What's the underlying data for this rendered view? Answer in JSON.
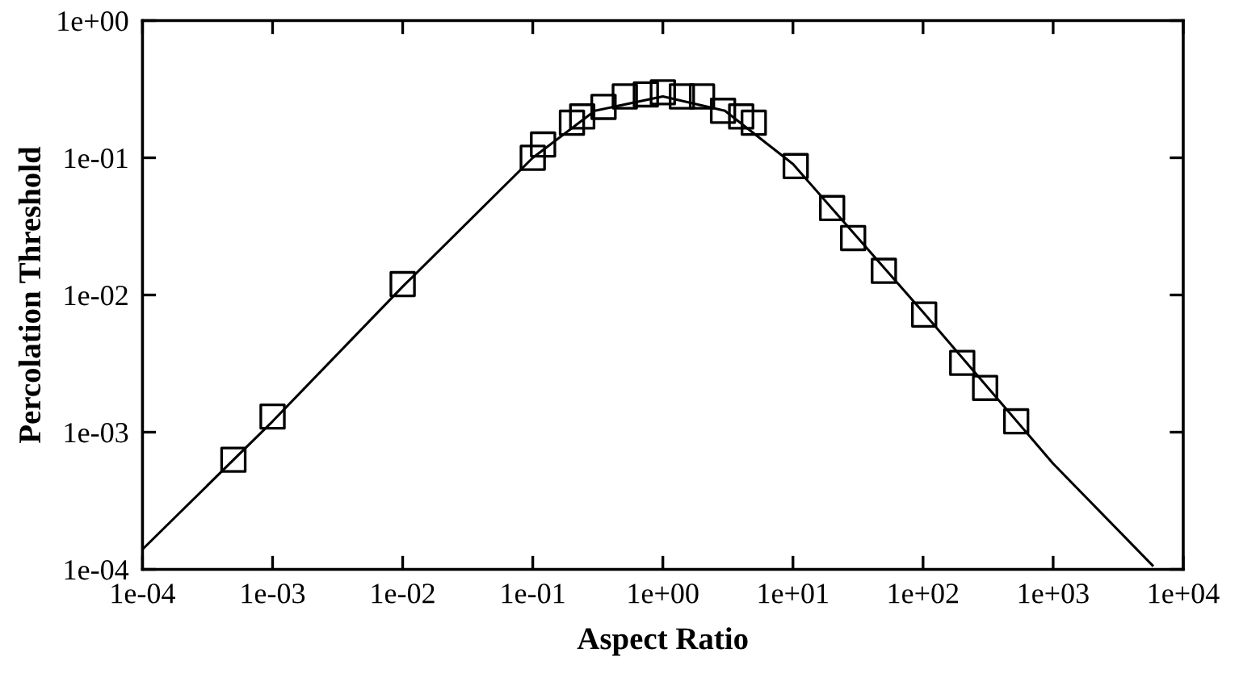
{
  "chart_data": {
    "type": "scatter",
    "xlabel": "Aspect Ratio",
    "ylabel": "Percolation Threshold",
    "log": "xy",
    "xlim": [
      0.0001,
      10000
    ],
    "ylim": [
      0.0001,
      1
    ],
    "xticks": [
      {
        "value": 0.0001,
        "label": "1e-04"
      },
      {
        "value": 0.001,
        "label": "1e-03"
      },
      {
        "value": 0.01,
        "label": "1e-02"
      },
      {
        "value": 0.1,
        "label": "1e-01"
      },
      {
        "value": 1,
        "label": "1e+00"
      },
      {
        "value": 10,
        "label": "1e+01"
      },
      {
        "value": 100,
        "label": "1e+02"
      },
      {
        "value": 1000,
        "label": "1e+03"
      },
      {
        "value": 10000,
        "label": "1e+04"
      }
    ],
    "yticks": [
      {
        "value": 0.0001,
        "label": "1e-04"
      },
      {
        "value": 0.001,
        "label": "1e-03"
      },
      {
        "value": 0.01,
        "label": "1e-02"
      },
      {
        "value": 0.1,
        "label": "1e-01"
      },
      {
        "value": 1,
        "label": "1e+00"
      }
    ],
    "grid": false,
    "legend": false,
    "series": [
      {
        "type": "line",
        "color": "#000000",
        "marker": "none",
        "line_style": "solid",
        "x": [
          0.0001,
          0.001,
          0.01,
          0.1,
          0.3,
          1,
          3,
          10,
          100,
          1000,
          5800
        ],
        "values": [
          0.00014,
          0.0012,
          0.0115,
          0.1,
          0.22,
          0.28,
          0.22,
          0.09,
          0.0075,
          0.00059,
          0.000107
        ]
      },
      {
        "type": "scatter",
        "color": "#000000",
        "marker": "square",
        "x": [
          0.0005,
          0.001,
          0.01,
          0.1,
          0.12,
          0.2,
          0.24,
          0.35,
          0.51,
          0.74,
          1.0,
          1.4,
          2.0,
          2.9,
          4.0,
          5.0,
          10.5,
          20,
          29,
          50,
          102,
          200,
          300,
          520
        ],
        "values": [
          0.00063,
          0.0013,
          0.012,
          0.1,
          0.125,
          0.18,
          0.2,
          0.235,
          0.28,
          0.29,
          0.3,
          0.28,
          0.28,
          0.22,
          0.2,
          0.18,
          0.087,
          0.043,
          0.026,
          0.015,
          0.0072,
          0.0032,
          0.0021,
          0.0012
        ]
      }
    ]
  }
}
